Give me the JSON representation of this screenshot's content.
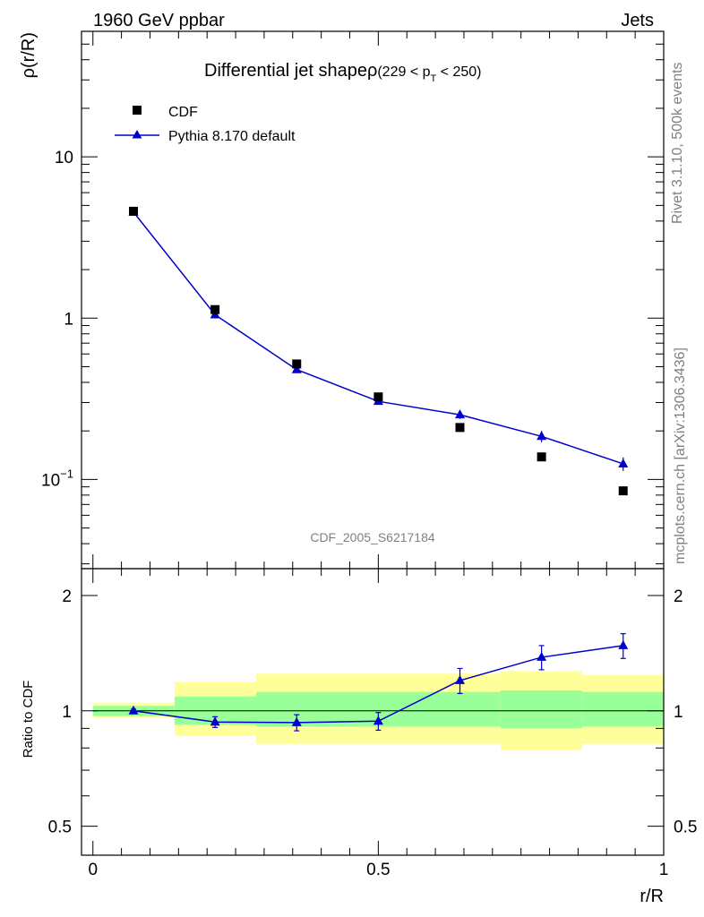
{
  "header": {
    "energy_label": "1960 GeV ppbar",
    "process_label": "Jets"
  },
  "side_text": {
    "rivet": "Rivet 3.1.10,  500k events",
    "mcplots": "mcplots.cern.ch [arXiv:1306.3436]"
  },
  "chart_data": [
    {
      "type": "scatter",
      "title_main": "Differential jet shapeρ",
      "title_range_open": "(229 < p",
      "title_range_sub": "T",
      "title_range_close": " < 250)",
      "ylabel": "ρ(r/R)",
      "yscale": "log",
      "ylim": [
        0.028,
        60
      ],
      "xlim": [
        -0.02,
        1.0
      ],
      "y_ticks": [
        {
          "value": 0.1,
          "base": "10",
          "exp": "−1"
        },
        {
          "value": 1,
          "label": "1"
        },
        {
          "value": 10,
          "label": "10"
        }
      ],
      "watermark": "CDF_2005_S6217184",
      "legend": {
        "position": "top-left"
      },
      "series": [
        {
          "name": "CDF",
          "marker": "square",
          "color": "#000000",
          "x": [
            0.071,
            0.214,
            0.357,
            0.5,
            0.643,
            0.786,
            0.929
          ],
          "y": [
            4.6,
            1.13,
            0.52,
            0.325,
            0.21,
            0.138,
            0.085
          ]
        },
        {
          "name": "Pythia 8.170 default",
          "marker": "triangle",
          "color": "#0000cc",
          "x": [
            0.071,
            0.214,
            0.357,
            0.5,
            0.643,
            0.786,
            0.929
          ],
          "y": [
            4.55,
            1.05,
            0.48,
            0.305,
            0.252,
            0.185,
            0.125
          ],
          "yerr": [
            0.05,
            0.02,
            0.015,
            0.01,
            0.015,
            0.015,
            0.012
          ]
        }
      ]
    },
    {
      "type": "line",
      "ylabel": "Ratio to CDF",
      "xlabel": "r/R",
      "yscale": "log",
      "ylim": [
        0.42,
        2.35
      ],
      "xlim": [
        -0.02,
        1.0
      ],
      "y_ticks": [
        {
          "value": 0.5,
          "label": "0.5"
        },
        {
          "value": 1,
          "label": "1"
        },
        {
          "value": 2,
          "label": "2"
        }
      ],
      "x_ticks": [
        {
          "value": 0,
          "label": "0"
        },
        {
          "value": 0.5,
          "label": "0.5"
        },
        {
          "value": 1,
          "label": "1"
        }
      ],
      "reference_line": 1.0,
      "bands": [
        {
          "x0": 0.0,
          "x1": 0.143,
          "yellow": [
            0.96,
            1.05
          ],
          "green": [
            0.97,
            1.03
          ]
        },
        {
          "x0": 0.143,
          "x1": 0.286,
          "yellow": [
            0.86,
            1.19
          ],
          "green": [
            0.92,
            1.09
          ]
        },
        {
          "x0": 0.286,
          "x1": 0.714,
          "yellow": [
            0.82,
            1.25
          ],
          "green": [
            0.91,
            1.12
          ]
        },
        {
          "x0": 0.714,
          "x1": 0.857,
          "yellow": [
            0.79,
            1.27
          ],
          "green": [
            0.9,
            1.13
          ]
        },
        {
          "x0": 0.857,
          "x1": 1.0,
          "yellow": [
            0.82,
            1.24
          ],
          "green": [
            0.91,
            1.12
          ]
        }
      ],
      "series": [
        {
          "name": "Pythia 8.170 default",
          "marker": "triangle",
          "color": "#0000cc",
          "x": [
            0.071,
            0.214,
            0.357,
            0.5,
            0.643,
            0.786,
            0.929
          ],
          "y": [
            1.0,
            0.935,
            0.932,
            0.94,
            1.2,
            1.38,
            1.48
          ],
          "yerr": [
            0.01,
            0.03,
            0.045,
            0.05,
            0.09,
            0.1,
            0.11
          ]
        }
      ]
    }
  ]
}
